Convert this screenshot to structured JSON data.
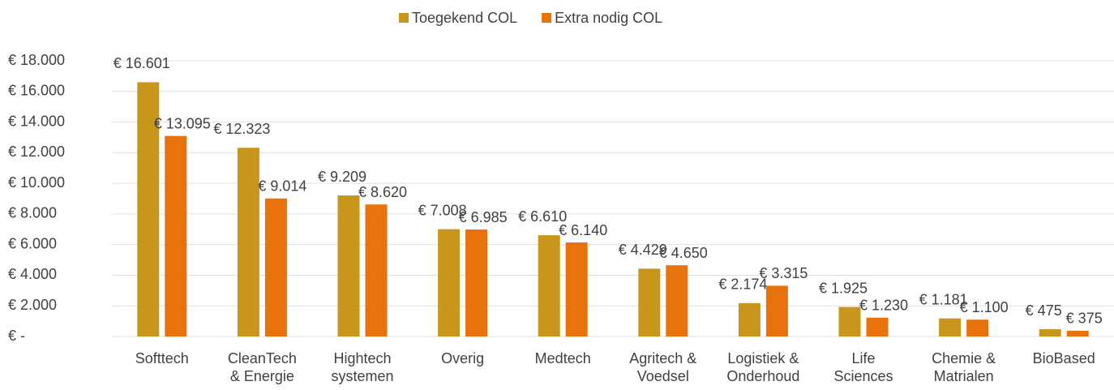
{
  "chart_data": {
    "type": "bar",
    "categories": [
      "Softtech",
      "CleanTech\n& Energie",
      "Hightech\nsystemen",
      "Overig",
      "Medtech",
      "Agritech &\nVoedsel",
      "Logistiek &\nOnderhoud",
      "Life\nSciences",
      "Chemie &\nMatrialen",
      "BioBased"
    ],
    "series": [
      {
        "name": "Toegekend COL",
        "color": "#c8961b",
        "values": [
          16601,
          12323,
          9209,
          7008,
          6610,
          4429,
          2174,
          1925,
          1181,
          475
        ],
        "value_labels": [
          "€ 16.601",
          "€ 12.323",
          "€ 9.209",
          "€ 7.008",
          "€ 6.610",
          "€ 4.429",
          "€ 2.174",
          "€ 1.925",
          "€ 1.181",
          "€ 475"
        ]
      },
      {
        "name": "Extra nodig COL",
        "color": "#e8730c",
        "values": [
          13095,
          9014,
          8620,
          6985,
          6140,
          4650,
          3315,
          1230,
          1100,
          375
        ],
        "value_labels": [
          "€ 13.095",
          "€ 9.014",
          "€ 8.620",
          "€ 6.985",
          "€ 6.140",
          "€ 4.650",
          "€ 3.315",
          "€ 1.230",
          "€ 1.100",
          "€ 375"
        ]
      }
    ],
    "ylim": [
      0,
      18000
    ],
    "yticks": [
      {
        "value": 0,
        "label": "€ -"
      },
      {
        "value": 2000,
        "label": "€ 2.000"
      },
      {
        "value": 4000,
        "label": "€ 4.000"
      },
      {
        "value": 6000,
        "label": "€ 6.000"
      },
      {
        "value": 8000,
        "label": "€ 8.000"
      },
      {
        "value": 10000,
        "label": "€ 10.000"
      },
      {
        "value": 12000,
        "label": "€ 12.000"
      },
      {
        "value": 14000,
        "label": "€ 14.000"
      },
      {
        "value": 16000,
        "label": "€ 16.000"
      },
      {
        "value": 18000,
        "label": "€ 18.000"
      }
    ],
    "grid": true,
    "legend": "top"
  }
}
